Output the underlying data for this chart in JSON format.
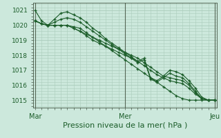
{
  "bg_color": "#cce8dc",
  "grid_color": "#aaccbb",
  "line_color": "#1a5c28",
  "xlabel": "Pression niveau de la mer( hPa )",
  "ylim": [
    1014.5,
    1021.5
  ],
  "yticks": [
    1015,
    1016,
    1017,
    1018,
    1019,
    1020,
    1021
  ],
  "xtick_labels": [
    "Mar",
    "Mer",
    "Jeu"
  ],
  "xtick_positions": [
    0,
    14,
    28
  ],
  "vline_color": "#556655",
  "series": [
    [
      1021.0,
      1020.3,
      1020.0,
      1020.0,
      1020.0,
      1020.0,
      1019.9,
      1019.8,
      1019.5,
      1019.2,
      1018.9,
      1018.6,
      1018.3,
      1018.0,
      1017.7,
      1017.4,
      1017.1,
      1016.8,
      1016.5,
      1016.2,
      1015.9,
      1015.6,
      1015.3,
      1015.1,
      1015.0,
      1015.0,
      1015.0,
      1015.0,
      1015.0
    ],
    [
      1020.3,
      1020.1,
      1020.0,
      1020.4,
      1020.8,
      1020.9,
      1020.7,
      1020.5,
      1020.2,
      1019.8,
      1019.5,
      1019.1,
      1018.8,
      1018.5,
      1018.2,
      1017.9,
      1017.6,
      1017.8,
      1016.5,
      1016.3,
      1016.6,
      1017.0,
      1016.9,
      1016.7,
      1016.3,
      1015.8,
      1015.2,
      1015.0,
      1015.0
    ],
    [
      1020.3,
      1020.1,
      1020.0,
      1020.2,
      1020.4,
      1020.5,
      1020.4,
      1020.2,
      1019.9,
      1019.6,
      1019.3,
      1019.0,
      1018.7,
      1018.4,
      1018.1,
      1017.8,
      1017.5,
      1017.7,
      1016.4,
      1016.2,
      1016.5,
      1016.8,
      1016.6,
      1016.5,
      1016.1,
      1015.6,
      1015.1,
      1015.0,
      1015.0
    ],
    [
      1020.3,
      1020.1,
      1020.0,
      1020.0,
      1020.0,
      1020.0,
      1019.8,
      1019.6,
      1019.4,
      1019.2,
      1019.0,
      1018.8,
      1018.6,
      1018.4,
      1018.2,
      1018.0,
      1017.8,
      1017.5,
      1017.2,
      1016.9,
      1016.6,
      1016.5,
      1016.4,
      1016.3,
      1016.0,
      1015.5,
      1015.1,
      1015.0,
      1015.0
    ],
    [
      1020.3,
      1020.1,
      1020.0,
      1020.0,
      1020.0,
      1020.0,
      1019.8,
      1019.6,
      1019.3,
      1019.0,
      1018.8,
      1018.6,
      1018.4,
      1018.2,
      1018.0,
      1017.8,
      1017.6,
      1017.3,
      1017.0,
      1016.7,
      1016.5,
      1016.3,
      1016.2,
      1016.1,
      1015.8,
      1015.4,
      1015.1,
      1015.0,
      1015.0
    ]
  ]
}
